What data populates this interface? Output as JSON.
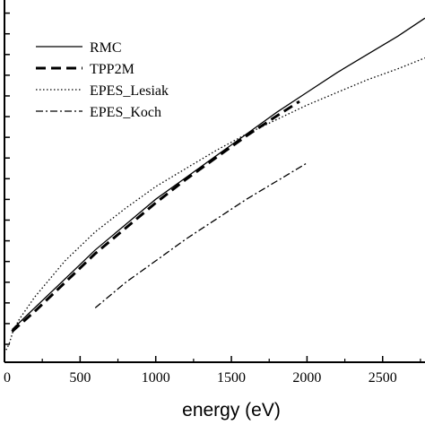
{
  "chart_data": {
    "type": "line",
    "xlabel": "energy (eV)",
    "ylabel": "",
    "xlim": [
      0,
      2780
    ],
    "ylim": [
      0,
      1
    ],
    "x_ticks": [
      0,
      500,
      1000,
      1500,
      2000,
      2500
    ],
    "x_tick_labels": [
      "0",
      "500",
      "1000",
      "1500",
      "2000",
      "2500"
    ],
    "y_tick_count": 18,
    "legend_position": "top-left",
    "series": [
      {
        "name": "RMC",
        "style": "solid",
        "x": [
          50,
          200,
          400,
          600,
          800,
          1000,
          1200,
          1400,
          1600,
          1800,
          2000,
          2200,
          2400,
          2600,
          2780
        ],
        "y": [
          0.09,
          0.15,
          0.23,
          0.31,
          0.38,
          0.45,
          0.51,
          0.57,
          0.63,
          0.69,
          0.745,
          0.8,
          0.85,
          0.9,
          0.95
        ]
      },
      {
        "name": "TPP2M",
        "style": "dashed",
        "x": [
          50,
          200,
          400,
          600,
          800,
          1000,
          1200,
          1400,
          1600,
          1800,
          1950
        ],
        "y": [
          0.085,
          0.14,
          0.22,
          0.3,
          0.37,
          0.44,
          0.505,
          0.565,
          0.625,
          0.68,
          0.72
        ]
      },
      {
        "name": "EPES_Lesiak",
        "style": "dotted",
        "x": [
          0,
          30,
          60,
          100,
          200,
          400,
          600,
          800,
          1000,
          1200,
          1400,
          1600,
          1800,
          2000,
          2200,
          2400,
          2600,
          2780
        ],
        "y": [
          0.025,
          0.05,
          0.09,
          0.12,
          0.18,
          0.28,
          0.36,
          0.425,
          0.485,
          0.535,
          0.585,
          0.63,
          0.67,
          0.71,
          0.745,
          0.78,
          0.81,
          0.84
        ]
      },
      {
        "name": "EPES_Koch",
        "style": "dashdot",
        "x": [
          600,
          800,
          1000,
          1200,
          1400,
          1600,
          1800,
          2000
        ],
        "y": [
          0.15,
          0.22,
          0.28,
          0.34,
          0.395,
          0.45,
          0.5,
          0.55
        ]
      }
    ]
  }
}
